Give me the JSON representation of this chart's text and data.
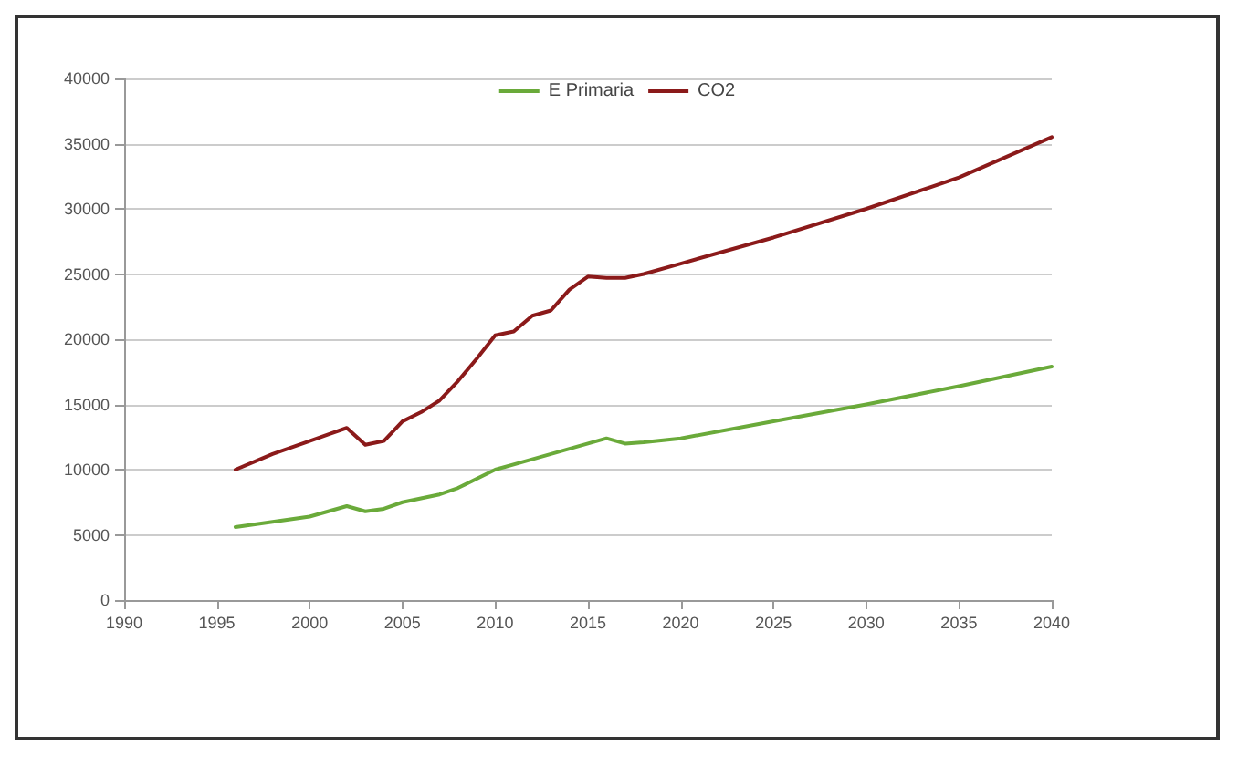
{
  "chart_data": {
    "type": "line",
    "series": [
      {
        "name": "E Primaria",
        "color": "#6aaa3a",
        "x": [
          1996,
          1998,
          2000,
          2002,
          2003,
          2004,
          2005,
          2007,
          2008,
          2010,
          2012,
          2014,
          2016,
          2017,
          2018,
          2020,
          2025,
          2030,
          2035,
          2040
        ],
        "values": [
          5600,
          6000,
          6400,
          7200,
          6800,
          7000,
          7500,
          8100,
          8600,
          10000,
          10800,
          11600,
          12400,
          12000,
          12100,
          12400,
          13700,
          15000,
          16400,
          17900
        ]
      },
      {
        "name": "CO2",
        "color": "#8b1a1a",
        "x": [
          1996,
          1998,
          2000,
          2001,
          2002,
          2003,
          2004,
          2005,
          2006,
          2007,
          2008,
          2009,
          2010,
          2011,
          2012,
          2013,
          2014,
          2015,
          2016,
          2017,
          2018,
          2020,
          2025,
          2030,
          2035,
          2040
        ],
        "values": [
          10000,
          11200,
          12200,
          12700,
          13200,
          11900,
          12200,
          13700,
          14400,
          15300,
          16800,
          18500,
          20300,
          20600,
          21800,
          22200,
          23800,
          24800,
          24700,
          24700,
          25000,
          25800,
          27800,
          30000,
          32400,
          35500
        ]
      }
    ],
    "xlim": [
      1990,
      2040
    ],
    "xticks": [
      1990,
      1995,
      2000,
      2005,
      2010,
      2015,
      2020,
      2025,
      2030,
      2035,
      2040
    ],
    "ylim": [
      0,
      40000
    ],
    "yticks": [
      0,
      5000,
      10000,
      15000,
      20000,
      25000,
      30000,
      35000,
      40000
    ],
    "grid": "y",
    "legend": "top",
    "marker": "none",
    "line_style": "solid"
  }
}
